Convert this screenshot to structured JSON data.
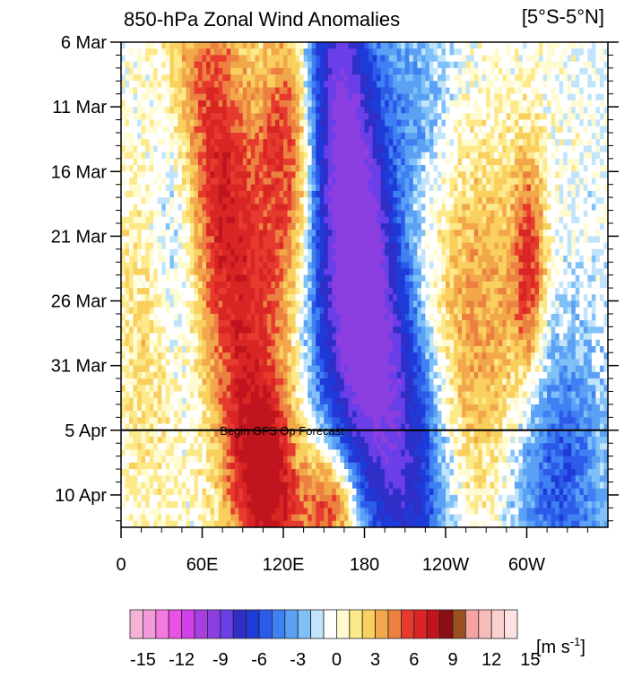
{
  "chart_data": {
    "type": "heatmap",
    "title": "850-hPa Zonal Wind Anomalies",
    "region_label": "[5°S-5°N]",
    "y_tick_labels": [
      "6 Mar",
      "11 Mar",
      "16 Mar",
      "21 Mar",
      "26 Mar",
      "31 Mar",
      "5 Apr",
      "10 Apr"
    ],
    "y_tick_dates": [
      "6 Mar",
      "11 Mar",
      "16 Mar",
      "21 Mar",
      "26 Mar",
      "31 Mar",
      "5 Apr",
      "10 Apr"
    ],
    "y_range_days": [
      0,
      37.5
    ],
    "x_tick_labels": [
      "0",
      "60E",
      "120E",
      "180",
      "120W",
      "60W"
    ],
    "x_tick_lon": [
      0,
      60,
      120,
      180,
      240,
      300
    ],
    "x_range_lon": [
      0,
      360
    ],
    "forecast_line": {
      "label": "Begin GFS Op Forecast",
      "date": "5 Apr"
    },
    "colorbar": {
      "unit_label": "[m s",
      "unit_superscript": "-1",
      "unit_close": "]",
      "tick_labels": [
        "-15",
        "-12",
        "-9",
        "-6",
        "-3",
        "0",
        "3",
        "6",
        "9",
        "12",
        "15"
      ],
      "colors": [
        "#f5b3d6",
        "#f59ad9",
        "#f27ae0",
        "#ea52e6",
        "#d03fea",
        "#a63ee0",
        "#8b3fe0",
        "#6a3ee8",
        "#2f2fc8",
        "#1e3ad8",
        "#2c5bea",
        "#3f80f2",
        "#5aa0f5",
        "#7fc0f8",
        "#bfe4fb",
        "#ffffff",
        "#fffbd0",
        "#fde98a",
        "#f9cf5e",
        "#f2a84a",
        "#ec8040",
        "#e63a2e",
        "#d92624",
        "#c0151e",
        "#8a0e14",
        "#9a5020",
        "#f7a3a3",
        "#f8bcbc",
        "#fad0d0",
        "#fce2e2"
      ]
    },
    "field": {
      "lon_step": 3,
      "time_rows": 76,
      "rows_per_day": 2,
      "model": "eastward_propagating_anomalies"
    }
  }
}
